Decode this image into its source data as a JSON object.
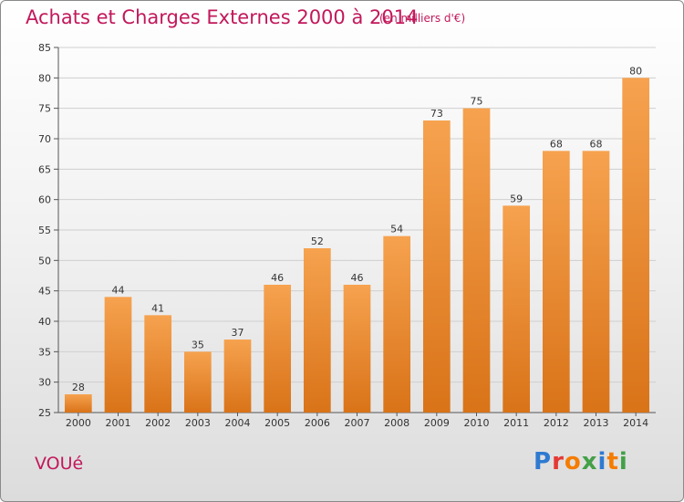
{
  "header": {
    "title": "Achats et Charges Externes 2000 à 2014",
    "subtitle": "(en milliers d'€)"
  },
  "footer": {
    "place": "VOUé",
    "logo": [
      "P",
      "r",
      "o",
      "x",
      "i",
      "t",
      "i"
    ],
    "logo_colors": [
      "#2e7ad1",
      "#e53935",
      "#f57c00",
      "#43a047",
      "#2e7ad1",
      "#f57c00",
      "#43a047"
    ]
  },
  "chart_data": {
    "type": "bar",
    "title": "Achats et Charges Externes 2000 à 2014",
    "subtitle": "(en milliers d'€)",
    "categories": [
      "2000",
      "2001",
      "2002",
      "2003",
      "2004",
      "2005",
      "2006",
      "2007",
      "2008",
      "2009",
      "2010",
      "2011",
      "2012",
      "2013",
      "2014"
    ],
    "values": [
      28,
      44,
      41,
      35,
      37,
      46,
      52,
      46,
      54,
      73,
      75,
      59,
      68,
      68,
      80
    ],
    "ylim": [
      25,
      85
    ],
    "yticks": [
      25,
      30,
      35,
      40,
      45,
      50,
      55,
      60,
      65,
      70,
      75,
      80,
      85
    ],
    "grid": true,
    "bar_color_top": "#f6a24f",
    "bar_color_bottom": "#d97318",
    "grid_color": "#cfcfcf"
  }
}
